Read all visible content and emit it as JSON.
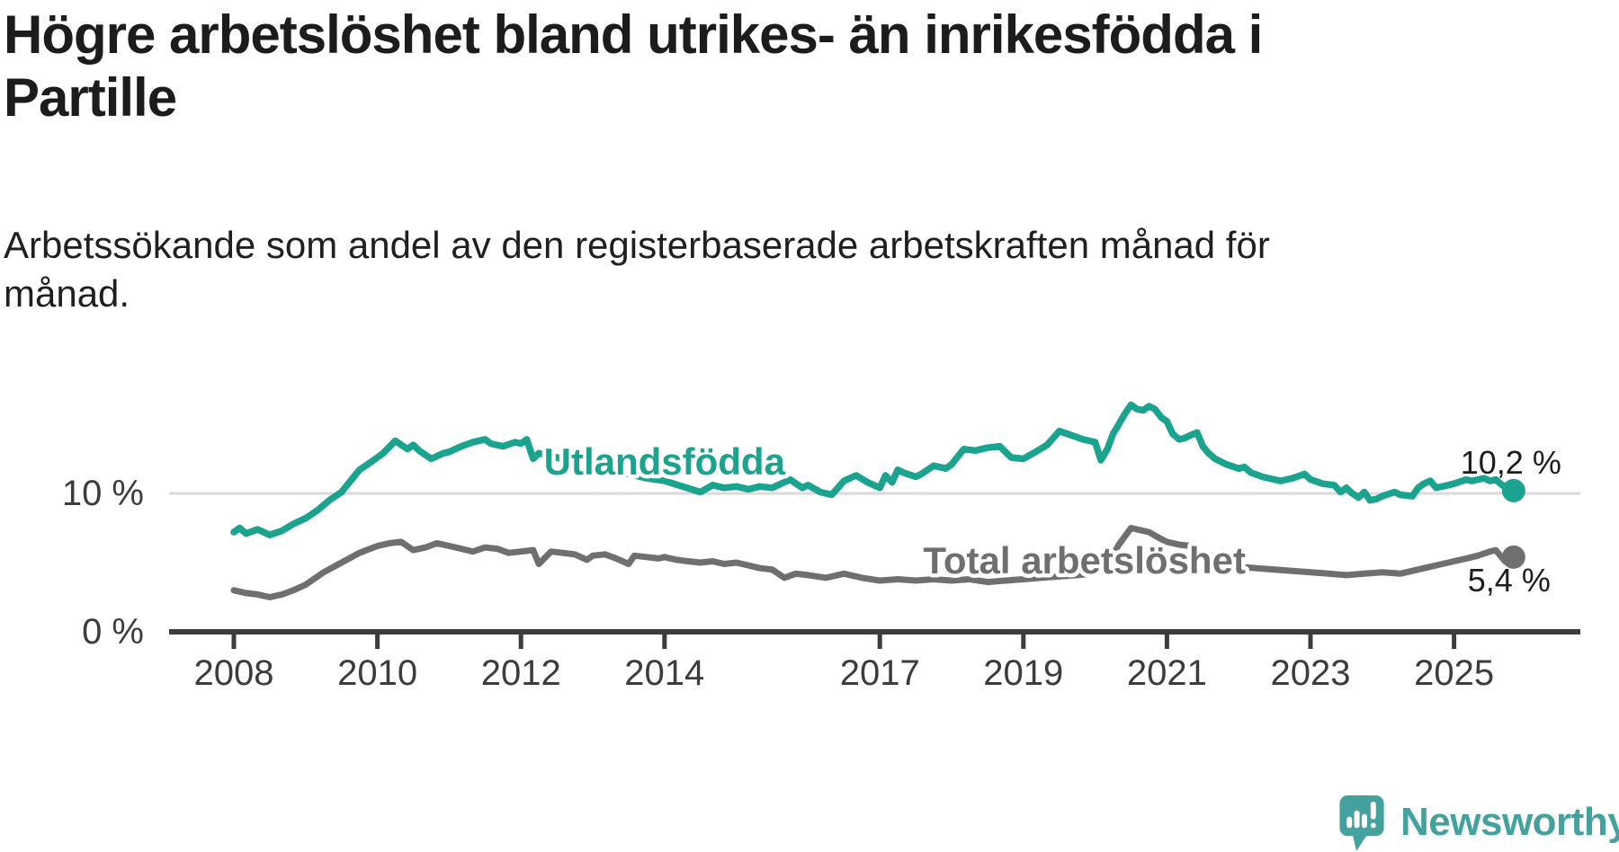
{
  "header": {
    "title": "Högre arbetslöshet bland utrikes- än inrikesfödda i Partille",
    "title_lines": [
      "Högre arbetslöshet bland utrikes- än inrikesfödda i",
      "Partille"
    ],
    "subtitle": "Arbetssökande som andel av den registerbaserade arbetskraften månad för månad.",
    "subtitle_lines": [
      "Arbetssökande som andel av den registerbaserade arbetskraften månad för",
      "månad."
    ]
  },
  "branding": {
    "logo_text": "Newsworthy",
    "logo_icon": "newsworthy-pin-icon",
    "logo_color": "#43a29d"
  },
  "colors": {
    "foreign_born_line": "#1AA38F",
    "total_line": "#6F6F72",
    "axis": "#3C3C3C",
    "gridline": "#DADADA",
    "tick_text": "#3C3C3C",
    "value_label_text": "#1d1d1b",
    "background": "#ffffff"
  },
  "chart_data": {
    "type": "line",
    "title": "Högre arbetslöshet bland utrikes- än inrikesfödda i Partille",
    "subtitle": "Arbetssökande som andel av den registerbaserade arbetskraften månad för månad.",
    "xlabel": "",
    "ylabel": "",
    "x_unit": "year (decimal = month position)",
    "y_unit": "percent",
    "xlim": [
      2007.1,
      2026.8
    ],
    "ylim": [
      0,
      21
    ],
    "grid": "horizontal-10-only",
    "legend_position": "inline-labels-on-lines",
    "x_ticks": [
      2008,
      2010,
      2012,
      2014,
      2017,
      2019,
      2021,
      2023,
      2025
    ],
    "y_ticks": [
      {
        "value": 0,
        "label": "0 %"
      },
      {
        "value": 10,
        "label": "10 %"
      }
    ],
    "series": [
      {
        "name": "Utlandsfödda",
        "color": "#1AA38F",
        "end_label": "10,2 %",
        "last_value": 10.2,
        "label_pos": {
          "x": 2014.0,
          "y": 12.3
        },
        "points": [
          [
            2008.0,
            7.2
          ],
          [
            2008.08,
            7.5
          ],
          [
            2008.17,
            7.1
          ],
          [
            2008.33,
            7.4
          ],
          [
            2008.5,
            7.0
          ],
          [
            2008.67,
            7.3
          ],
          [
            2008.83,
            7.8
          ],
          [
            2009.0,
            8.2
          ],
          [
            2009.17,
            8.8
          ],
          [
            2009.33,
            9.5
          ],
          [
            2009.5,
            10.1
          ],
          [
            2009.75,
            11.7
          ],
          [
            2009.92,
            12.3
          ],
          [
            2010.0,
            12.6
          ],
          [
            2010.08,
            12.9
          ],
          [
            2010.25,
            13.8
          ],
          [
            2010.42,
            13.2
          ],
          [
            2010.5,
            13.5
          ],
          [
            2010.58,
            13.1
          ],
          [
            2010.75,
            12.5
          ],
          [
            2010.92,
            12.9
          ],
          [
            2011.0,
            13.0
          ],
          [
            2011.17,
            13.4
          ],
          [
            2011.33,
            13.7
          ],
          [
            2011.5,
            13.9
          ],
          [
            2011.58,
            13.6
          ],
          [
            2011.75,
            13.4
          ],
          [
            2011.92,
            13.7
          ],
          [
            2012.0,
            13.6
          ],
          [
            2012.08,
            13.9
          ],
          [
            2012.17,
            12.5
          ],
          [
            2012.25,
            12.9
          ],
          [
            2012.5,
            12.6
          ],
          [
            2012.75,
            12.2
          ],
          [
            2013.0,
            12.0
          ],
          [
            2013.25,
            11.6
          ],
          [
            2013.5,
            11.4
          ],
          [
            2013.75,
            11.1
          ],
          [
            2014.0,
            10.9
          ],
          [
            2014.25,
            10.5
          ],
          [
            2014.5,
            10.1
          ],
          [
            2014.67,
            10.6
          ],
          [
            2014.83,
            10.4
          ],
          [
            2015.0,
            10.5
          ],
          [
            2015.17,
            10.3
          ],
          [
            2015.33,
            10.5
          ],
          [
            2015.5,
            10.4
          ],
          [
            2015.75,
            11.0
          ],
          [
            2015.92,
            10.4
          ],
          [
            2016.0,
            10.6
          ],
          [
            2016.17,
            10.1
          ],
          [
            2016.33,
            9.9
          ],
          [
            2016.5,
            10.9
          ],
          [
            2016.67,
            11.3
          ],
          [
            2016.83,
            10.8
          ],
          [
            2017.0,
            10.4
          ],
          [
            2017.08,
            11.3
          ],
          [
            2017.17,
            10.8
          ],
          [
            2017.25,
            11.7
          ],
          [
            2017.33,
            11.5
          ],
          [
            2017.5,
            11.2
          ],
          [
            2017.58,
            11.4
          ],
          [
            2017.75,
            12.0
          ],
          [
            2017.92,
            11.8
          ],
          [
            2018.0,
            12.1
          ],
          [
            2018.17,
            13.2
          ],
          [
            2018.33,
            13.1
          ],
          [
            2018.5,
            13.3
          ],
          [
            2018.67,
            13.4
          ],
          [
            2018.83,
            12.6
          ],
          [
            2019.0,
            12.5
          ],
          [
            2019.17,
            13.0
          ],
          [
            2019.33,
            13.5
          ],
          [
            2019.5,
            14.5
          ],
          [
            2019.67,
            14.2
          ],
          [
            2019.83,
            13.9
          ],
          [
            2020.0,
            13.7
          ],
          [
            2020.08,
            12.4
          ],
          [
            2020.17,
            13.2
          ],
          [
            2020.25,
            14.3
          ],
          [
            2020.33,
            15.0
          ],
          [
            2020.42,
            15.8
          ],
          [
            2020.5,
            16.4
          ],
          [
            2020.58,
            16.1
          ],
          [
            2020.67,
            16.0
          ],
          [
            2020.75,
            16.3
          ],
          [
            2020.83,
            16.1
          ],
          [
            2020.92,
            15.5
          ],
          [
            2021.0,
            15.2
          ],
          [
            2021.08,
            14.3
          ],
          [
            2021.17,
            13.9
          ],
          [
            2021.25,
            14.0
          ],
          [
            2021.33,
            14.2
          ],
          [
            2021.42,
            14.4
          ],
          [
            2021.5,
            13.4
          ],
          [
            2021.58,
            12.9
          ],
          [
            2021.67,
            12.5
          ],
          [
            2021.83,
            12.1
          ],
          [
            2022.0,
            11.8
          ],
          [
            2022.08,
            11.9
          ],
          [
            2022.17,
            11.5
          ],
          [
            2022.33,
            11.2
          ],
          [
            2022.5,
            11.0
          ],
          [
            2022.58,
            10.9
          ],
          [
            2022.75,
            11.1
          ],
          [
            2022.92,
            11.4
          ],
          [
            2023.0,
            11.0
          ],
          [
            2023.17,
            10.7
          ],
          [
            2023.33,
            10.6
          ],
          [
            2023.42,
            10.1
          ],
          [
            2023.5,
            10.4
          ],
          [
            2023.58,
            10.0
          ],
          [
            2023.67,
            9.7
          ],
          [
            2023.75,
            10.1
          ],
          [
            2023.83,
            9.5
          ],
          [
            2023.92,
            9.6
          ],
          [
            2024.0,
            9.8
          ],
          [
            2024.17,
            10.1
          ],
          [
            2024.25,
            9.9
          ],
          [
            2024.42,
            9.8
          ],
          [
            2024.5,
            10.4
          ],
          [
            2024.58,
            10.7
          ],
          [
            2024.67,
            10.9
          ],
          [
            2024.75,
            10.4
          ],
          [
            2024.92,
            10.6
          ],
          [
            2025.0,
            10.7
          ],
          [
            2025.17,
            11.0
          ],
          [
            2025.25,
            10.9
          ],
          [
            2025.42,
            11.1
          ],
          [
            2025.5,
            10.9
          ],
          [
            2025.58,
            11.0
          ],
          [
            2025.67,
            10.6
          ],
          [
            2025.75,
            10.4
          ],
          [
            2025.83,
            10.2
          ]
        ]
      },
      {
        "name": "Total arbetslöshet",
        "color": "#6F6F72",
        "end_label": "5,4 %",
        "last_value": 5.4,
        "label_pos": {
          "x": 2019.85,
          "y": 5.15
        },
        "points": [
          [
            2008.0,
            3.0
          ],
          [
            2008.17,
            2.8
          ],
          [
            2008.33,
            2.7
          ],
          [
            2008.5,
            2.5
          ],
          [
            2008.67,
            2.7
          ],
          [
            2008.83,
            3.0
          ],
          [
            2009.0,
            3.4
          ],
          [
            2009.25,
            4.3
          ],
          [
            2009.5,
            5.0
          ],
          [
            2009.75,
            5.7
          ],
          [
            2010.0,
            6.2
          ],
          [
            2010.17,
            6.4
          ],
          [
            2010.33,
            6.5
          ],
          [
            2010.5,
            5.9
          ],
          [
            2010.67,
            6.1
          ],
          [
            2010.83,
            6.4
          ],
          [
            2011.0,
            6.2
          ],
          [
            2011.17,
            6.0
          ],
          [
            2011.33,
            5.8
          ],
          [
            2011.5,
            6.1
          ],
          [
            2011.67,
            6.0
          ],
          [
            2011.83,
            5.7
          ],
          [
            2012.0,
            5.8
          ],
          [
            2012.17,
            5.9
          ],
          [
            2012.25,
            4.9
          ],
          [
            2012.42,
            5.8
          ],
          [
            2012.58,
            5.7
          ],
          [
            2012.75,
            5.6
          ],
          [
            2012.92,
            5.2
          ],
          [
            2013.0,
            5.5
          ],
          [
            2013.17,
            5.6
          ],
          [
            2013.33,
            5.3
          ],
          [
            2013.5,
            4.9
          ],
          [
            2013.58,
            5.5
          ],
          [
            2013.75,
            5.4
          ],
          [
            2013.92,
            5.3
          ],
          [
            2014.0,
            5.4
          ],
          [
            2014.17,
            5.2
          ],
          [
            2014.33,
            5.1
          ],
          [
            2014.5,
            5.0
          ],
          [
            2014.67,
            5.1
          ],
          [
            2014.83,
            4.9
          ],
          [
            2015.0,
            5.0
          ],
          [
            2015.17,
            4.8
          ],
          [
            2015.33,
            4.6
          ],
          [
            2015.5,
            4.5
          ],
          [
            2015.67,
            3.9
          ],
          [
            2015.83,
            4.2
          ],
          [
            2016.0,
            4.1
          ],
          [
            2016.25,
            3.9
          ],
          [
            2016.5,
            4.2
          ],
          [
            2016.75,
            3.9
          ],
          [
            2017.0,
            3.7
          ],
          [
            2017.25,
            3.8
          ],
          [
            2017.5,
            3.7
          ],
          [
            2017.75,
            3.8
          ],
          [
            2018.0,
            3.7
          ],
          [
            2018.25,
            3.8
          ],
          [
            2018.5,
            3.6
          ],
          [
            2018.75,
            3.7
          ],
          [
            2019.0,
            3.8
          ],
          [
            2019.25,
            3.9
          ],
          [
            2019.5,
            4.0
          ],
          [
            2019.75,
            4.1
          ],
          [
            2020.0,
            4.2
          ],
          [
            2020.17,
            4.8
          ],
          [
            2020.33,
            6.3
          ],
          [
            2020.5,
            7.5
          ],
          [
            2020.58,
            7.4
          ],
          [
            2020.75,
            7.2
          ],
          [
            2020.92,
            6.7
          ],
          [
            2021.0,
            6.5
          ],
          [
            2021.17,
            6.3
          ],
          [
            2021.33,
            6.2
          ],
          [
            2021.5,
            5.6
          ],
          [
            2021.67,
            5.4
          ],
          [
            2021.83,
            5.0
          ],
          [
            2022.0,
            4.7
          ],
          [
            2022.25,
            4.6
          ],
          [
            2022.5,
            4.5
          ],
          [
            2022.75,
            4.4
          ],
          [
            2023.0,
            4.3
          ],
          [
            2023.25,
            4.2
          ],
          [
            2023.5,
            4.1
          ],
          [
            2023.75,
            4.2
          ],
          [
            2024.0,
            4.3
          ],
          [
            2024.25,
            4.2
          ],
          [
            2024.5,
            4.5
          ],
          [
            2024.75,
            4.8
          ],
          [
            2025.0,
            5.1
          ],
          [
            2025.17,
            5.3
          ],
          [
            2025.33,
            5.5
          ],
          [
            2025.5,
            5.8
          ],
          [
            2025.58,
            5.9
          ],
          [
            2025.71,
            5.1
          ],
          [
            2025.83,
            5.4
          ]
        ]
      }
    ]
  }
}
